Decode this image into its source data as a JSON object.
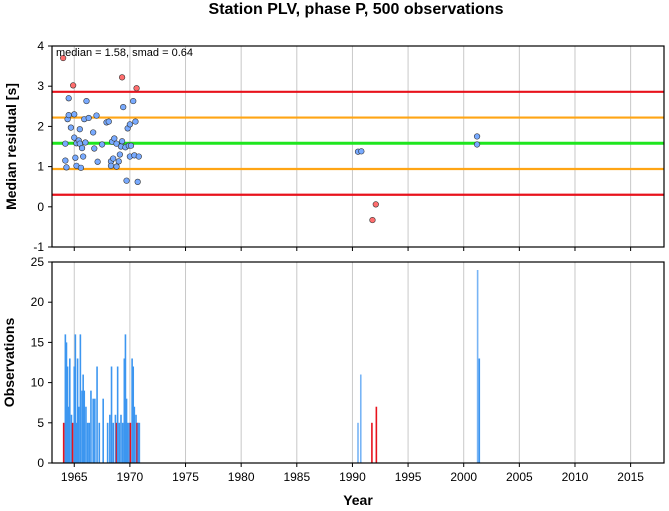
{
  "chart_data": [
    {
      "type": "scatter",
      "title": "Station PLV, phase P, 500 observations",
      "annotation": "median = 1.58, smad = 0.64",
      "ylabel": "Median residual [s]",
      "xlim": [
        1963,
        2018
      ],
      "ylim": [
        -1,
        4
      ],
      "yticks": [
        -1,
        0,
        1,
        2,
        3,
        4
      ],
      "grid": "vertical",
      "reference_lines": [
        {
          "y": 2.86,
          "color": "#e8121c"
        },
        {
          "y": 2.22,
          "color": "#ffa514"
        },
        {
          "y": 1.58,
          "color": "#1ee61e"
        },
        {
          "y": 0.94,
          "color": "#ffa514"
        },
        {
          "y": 0.3,
          "color": "#e8121c"
        }
      ],
      "point_colors": {
        "inlier": "#78aaff",
        "outlier": "#ff6e6e"
      },
      "points": [
        [
          1964.0,
          3.7,
          "outlier"
        ],
        [
          1964.2,
          1.57,
          "inlier"
        ],
        [
          1964.2,
          1.15,
          "inlier"
        ],
        [
          1964.3,
          0.98,
          "inlier"
        ],
        [
          1964.4,
          2.18,
          "inlier"
        ],
        [
          1964.5,
          2.7,
          "inlier"
        ],
        [
          1964.5,
          2.28,
          "inlier"
        ],
        [
          1964.7,
          1.97,
          "inlier"
        ],
        [
          1964.9,
          3.02,
          "outlier"
        ],
        [
          1965.0,
          2.3,
          "inlier"
        ],
        [
          1965.0,
          1.72,
          "inlier"
        ],
        [
          1965.1,
          1.22,
          "inlier"
        ],
        [
          1965.2,
          1.02,
          "inlier"
        ],
        [
          1965.2,
          1.58,
          "inlier"
        ],
        [
          1965.4,
          1.65,
          "inlier"
        ],
        [
          1965.5,
          1.93,
          "inlier"
        ],
        [
          1965.5,
          1.57,
          "inlier"
        ],
        [
          1965.6,
          0.97,
          "inlier"
        ],
        [
          1965.7,
          1.46,
          "inlier"
        ],
        [
          1965.8,
          1.25,
          "inlier"
        ],
        [
          1965.9,
          2.18,
          "inlier"
        ],
        [
          1966.0,
          1.6,
          "inlier"
        ],
        [
          1966.1,
          2.63,
          "inlier"
        ],
        [
          1966.3,
          2.21,
          "inlier"
        ],
        [
          1966.7,
          1.85,
          "inlier"
        ],
        [
          1966.8,
          1.45,
          "inlier"
        ],
        [
          1967.0,
          2.27,
          "inlier"
        ],
        [
          1967.1,
          1.12,
          "inlier"
        ],
        [
          1967.5,
          1.55,
          "inlier"
        ],
        [
          1967.9,
          2.1,
          "inlier"
        ],
        [
          1968.1,
          2.12,
          "inlier"
        ],
        [
          1968.3,
          1.13,
          "inlier"
        ],
        [
          1968.3,
          1.02,
          "inlier"
        ],
        [
          1968.4,
          1.62,
          "inlier"
        ],
        [
          1968.5,
          1.2,
          "inlier"
        ],
        [
          1968.6,
          1.7,
          "inlier"
        ],
        [
          1968.8,
          1.57,
          "inlier"
        ],
        [
          1968.8,
          1.0,
          "inlier"
        ],
        [
          1969.0,
          1.13,
          "inlier"
        ],
        [
          1969.1,
          1.3,
          "inlier"
        ],
        [
          1969.2,
          1.5,
          "inlier"
        ],
        [
          1969.3,
          1.63,
          "inlier"
        ],
        [
          1969.3,
          3.22,
          "outlier"
        ],
        [
          1969.4,
          2.48,
          "inlier"
        ],
        [
          1969.6,
          1.48,
          "inlier"
        ],
        [
          1969.7,
          0.65,
          "inlier"
        ],
        [
          1969.8,
          1.95,
          "inlier"
        ],
        [
          1969.9,
          1.52,
          "inlier"
        ],
        [
          1970.0,
          2.05,
          "inlier"
        ],
        [
          1970.0,
          1.25,
          "inlier"
        ],
        [
          1970.1,
          1.52,
          "inlier"
        ],
        [
          1970.3,
          2.63,
          "inlier"
        ],
        [
          1970.4,
          1.28,
          "inlier"
        ],
        [
          1970.5,
          2.12,
          "inlier"
        ],
        [
          1970.6,
          2.95,
          "outlier"
        ],
        [
          1970.7,
          0.62,
          "inlier"
        ],
        [
          1970.8,
          1.25,
          "inlier"
        ],
        [
          1990.5,
          1.37,
          "inlier"
        ],
        [
          1990.8,
          1.38,
          "inlier"
        ],
        [
          1991.8,
          -0.33,
          "outlier"
        ],
        [
          1992.1,
          0.06,
          "outlier"
        ],
        [
          2001.2,
          1.75,
          "inlier"
        ],
        [
          2001.2,
          1.55,
          "inlier"
        ]
      ]
    },
    {
      "type": "bar",
      "xlabel": "Year",
      "ylabel": "Observations",
      "xlim": [
        1963,
        2018
      ],
      "ylim": [
        0,
        25
      ],
      "yticks": [
        0,
        5,
        10,
        15,
        20,
        25
      ],
      "xticks": [
        1965,
        1970,
        1975,
        1980,
        1985,
        1990,
        1995,
        2000,
        2005,
        2010,
        2015
      ],
      "grid": "vertical",
      "bar_colors": {
        "blue": "#3c96f0",
        "lightblue": "#78b4f5",
        "red": "#e8121c"
      },
      "bars": [
        [
          1964.05,
          5,
          "red"
        ],
        [
          1964.2,
          16,
          "blue"
        ],
        [
          1964.3,
          15,
          "blue"
        ],
        [
          1964.4,
          12,
          "blue"
        ],
        [
          1964.5,
          7,
          "blue"
        ],
        [
          1964.6,
          13,
          "blue"
        ],
        [
          1964.75,
          6,
          "blue"
        ],
        [
          1964.85,
          5,
          "red"
        ],
        [
          1965.0,
          12,
          "blue"
        ],
        [
          1965.1,
          16,
          "blue"
        ],
        [
          1965.2,
          5,
          "blue"
        ],
        [
          1965.3,
          13,
          "blue"
        ],
        [
          1965.4,
          7,
          "blue"
        ],
        [
          1965.55,
          16,
          "blue"
        ],
        [
          1965.7,
          9,
          "blue"
        ],
        [
          1965.8,
          11,
          "blue"
        ],
        [
          1965.9,
          9,
          "blue"
        ],
        [
          1966.05,
          7,
          "blue"
        ],
        [
          1966.2,
          5,
          "blue"
        ],
        [
          1966.35,
          5,
          "blue"
        ],
        [
          1966.5,
          9,
          "blue"
        ],
        [
          1966.7,
          8,
          "blue"
        ],
        [
          1966.85,
          8,
          "blue"
        ],
        [
          1967.05,
          12,
          "blue"
        ],
        [
          1967.25,
          5,
          "blue"
        ],
        [
          1967.6,
          8,
          "blue"
        ],
        [
          1968.0,
          5,
          "blue"
        ],
        [
          1968.2,
          6,
          "blue"
        ],
        [
          1968.35,
          12,
          "blue"
        ],
        [
          1968.5,
          5,
          "blue"
        ],
        [
          1968.7,
          6,
          "blue"
        ],
        [
          1968.8,
          5,
          "red"
        ],
        [
          1968.9,
          12,
          "blue"
        ],
        [
          1969.05,
          5,
          "blue"
        ],
        [
          1969.2,
          6,
          "blue"
        ],
        [
          1969.35,
          5,
          "blue"
        ],
        [
          1969.5,
          13,
          "blue"
        ],
        [
          1969.6,
          16,
          "blue"
        ],
        [
          1969.7,
          8,
          "blue"
        ],
        [
          1969.8,
          5,
          "blue"
        ],
        [
          1969.95,
          5,
          "blue"
        ],
        [
          1970.05,
          5,
          "red"
        ],
        [
          1970.2,
          13,
          "blue"
        ],
        [
          1970.3,
          12,
          "blue"
        ],
        [
          1970.4,
          7,
          "blue"
        ],
        [
          1970.55,
          6,
          "blue"
        ],
        [
          1970.65,
          5,
          "red"
        ],
        [
          1970.75,
          5,
          "blue"
        ],
        [
          1970.85,
          5,
          "blue"
        ],
        [
          1990.5,
          5,
          "lightblue"
        ],
        [
          1990.75,
          11,
          "lightblue"
        ],
        [
          1991.75,
          5,
          "red"
        ],
        [
          1992.15,
          7,
          "red"
        ],
        [
          2001.25,
          24,
          "lightblue"
        ],
        [
          2001.4,
          13,
          "blue"
        ]
      ]
    }
  ]
}
